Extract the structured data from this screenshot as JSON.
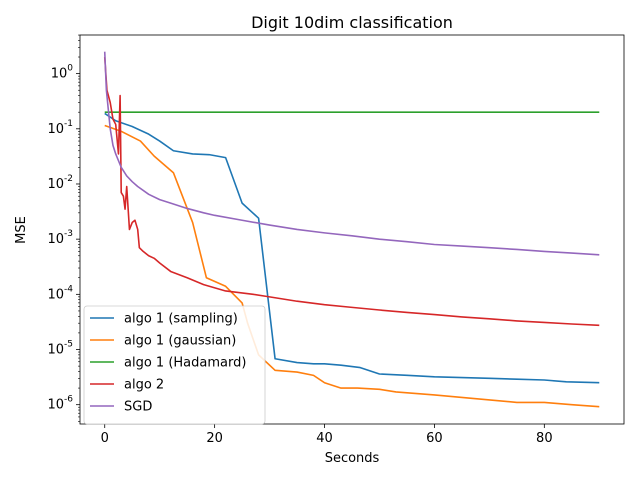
{
  "chart_data": {
    "type": "line",
    "title": "Digit 10dim classification",
    "xlabel": "Seconds",
    "ylabel": "MSE",
    "yscale": "log",
    "xlim": [
      -4.5,
      94.5
    ],
    "ylim_log10": [
      -6.35,
      0.7
    ],
    "x_ticks": [
      0,
      20,
      40,
      60,
      80
    ],
    "x_tick_labels": [
      "0",
      "20",
      "40",
      "60",
      "80"
    ],
    "y_ticks": [
      -6,
      -5,
      -4,
      -3,
      -2,
      -1,
      0
    ],
    "y_tick_labels": [
      "10^-6",
      "10^-5",
      "10^-4",
      "10^-3",
      "10^-2",
      "10^-1",
      "10^0"
    ],
    "legend_position": "lower-left",
    "grid": false,
    "series": [
      {
        "name": "algo 1 (sampling)",
        "color": "#1f77b4",
        "points": [
          [
            0,
            0.19
          ],
          [
            2,
            0.14
          ],
          [
            5,
            0.11
          ],
          [
            8,
            0.08
          ],
          [
            10,
            0.06
          ],
          [
            12.5,
            0.04
          ],
          [
            16,
            0.035
          ],
          [
            19,
            0.034
          ],
          [
            22,
            0.03
          ],
          [
            25,
            0.0045
          ],
          [
            28,
            0.0024
          ],
          [
            31,
            6.8e-06
          ],
          [
            35,
            5.8e-06
          ],
          [
            38,
            5.5e-06
          ],
          [
            40,
            5.5e-06
          ],
          [
            43,
            5.2e-06
          ],
          [
            46.5,
            4.7e-06
          ],
          [
            50,
            3.6e-06
          ],
          [
            55,
            3.4e-06
          ],
          [
            60,
            3.2e-06
          ],
          [
            65,
            3.1e-06
          ],
          [
            70,
            3e-06
          ],
          [
            75,
            2.9e-06
          ],
          [
            80,
            2.8e-06
          ],
          [
            84,
            2.6e-06
          ],
          [
            90,
            2.5e-06
          ]
        ]
      },
      {
        "name": "algo 1 (gaussian)",
        "color": "#ff7f0e",
        "points": [
          [
            0,
            0.115
          ],
          [
            3,
            0.09
          ],
          [
            6.5,
            0.06
          ],
          [
            9,
            0.032
          ],
          [
            12.5,
            0.016
          ],
          [
            16,
            0.002
          ],
          [
            18.5,
            0.0002
          ],
          [
            22,
            0.00014
          ],
          [
            25,
            7e-05
          ],
          [
            26,
            3e-05
          ],
          [
            28,
            8e-06
          ],
          [
            31,
            4.2e-06
          ],
          [
            35,
            3.9e-06
          ],
          [
            38,
            3.4e-06
          ],
          [
            40,
            2.5e-06
          ],
          [
            43,
            2e-06
          ],
          [
            46,
            2e-06
          ],
          [
            50,
            1.9e-06
          ],
          [
            53,
            1.7e-06
          ],
          [
            60,
            1.5e-06
          ],
          [
            67,
            1.3e-06
          ],
          [
            75,
            1.1e-06
          ],
          [
            80,
            1.1e-06
          ],
          [
            85,
            1e-06
          ],
          [
            90,
            9.2e-07
          ]
        ]
      },
      {
        "name": "algo 1 (Hadamard)",
        "color": "#2ca02c",
        "points": [
          [
            0,
            0.2
          ],
          [
            90,
            0.2
          ]
        ]
      },
      {
        "name": "algo 2",
        "color": "#d62728",
        "points": [
          [
            0,
            2.0
          ],
          [
            0.4,
            0.5
          ],
          [
            1,
            0.3
          ],
          [
            1.5,
            0.15
          ],
          [
            2,
            0.12
          ],
          [
            2.5,
            0.035
          ],
          [
            2.8,
            0.4
          ],
          [
            3,
            0.007
          ],
          [
            3.4,
            0.006
          ],
          [
            3.7,
            0.0035
          ],
          [
            4,
            0.009
          ],
          [
            4.5,
            0.0015
          ],
          [
            5,
            0.002
          ],
          [
            5.5,
            0.0022
          ],
          [
            6,
            0.0015
          ],
          [
            6.3,
            0.0007
          ],
          [
            7,
            0.0006
          ],
          [
            8,
            0.0005
          ],
          [
            9,
            0.00045
          ],
          [
            10,
            0.00037
          ],
          [
            12,
            0.00026
          ],
          [
            15,
            0.0002
          ],
          [
            18,
            0.00015
          ],
          [
            22,
            0.000115
          ],
          [
            27,
            0.0001
          ],
          [
            30,
            9e-05
          ],
          [
            35,
            7.5e-05
          ],
          [
            40,
            6.5e-05
          ],
          [
            45,
            5.8e-05
          ],
          [
            50,
            5.2e-05
          ],
          [
            55,
            4.7e-05
          ],
          [
            60,
            4.3e-05
          ],
          [
            65,
            3.9e-05
          ],
          [
            70,
            3.6e-05
          ],
          [
            75,
            3.3e-05
          ],
          [
            80,
            3.1e-05
          ],
          [
            85,
            2.9e-05
          ],
          [
            90,
            2.75e-05
          ]
        ]
      },
      {
        "name": "SGD",
        "color": "#9467bd",
        "points": [
          [
            0,
            2.5
          ],
          [
            0.3,
            0.5
          ],
          [
            0.7,
            0.2
          ],
          [
            1,
            0.1
          ],
          [
            1.5,
            0.05
          ],
          [
            2,
            0.035
          ],
          [
            3,
            0.02
          ],
          [
            4,
            0.014
          ],
          [
            5,
            0.011
          ],
          [
            6,
            0.009
          ],
          [
            8,
            0.0065
          ],
          [
            10,
            0.0052
          ],
          [
            12,
            0.0045
          ],
          [
            15,
            0.0036
          ],
          [
            18,
            0.003
          ],
          [
            20,
            0.0027
          ],
          [
            25,
            0.0022
          ],
          [
            30,
            0.0018
          ],
          [
            35,
            0.0015
          ],
          [
            40,
            0.0013
          ],
          [
            45,
            0.00115
          ],
          [
            50,
            0.001
          ],
          [
            55,
            0.0009
          ],
          [
            60,
            0.0008
          ],
          [
            65,
            0.00075
          ],
          [
            70,
            0.0007
          ],
          [
            75,
            0.00065
          ],
          [
            80,
            0.0006
          ],
          [
            85,
            0.00056
          ],
          [
            90,
            0.00052
          ]
        ]
      }
    ]
  }
}
